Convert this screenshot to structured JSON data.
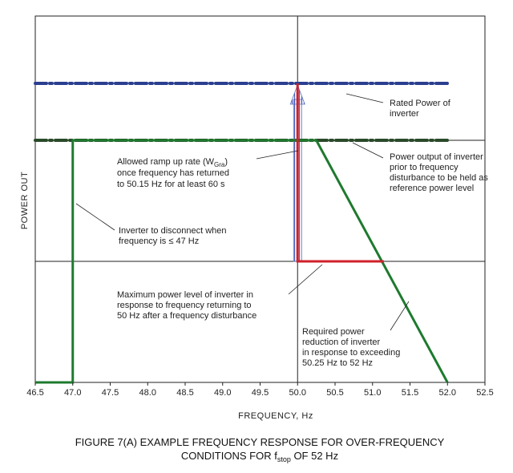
{
  "chart_data": {
    "type": "line",
    "xlabel": "FREQUENCY, Hz",
    "ylabel": "POWER OUT",
    "xlim": [
      46.5,
      52.5
    ],
    "x_ticks": [
      "46.5",
      "47.0",
      "47.5",
      "48.0",
      "48.5",
      "49.0",
      "49.5",
      "50.0",
      "50.5",
      "51.0",
      "51.5",
      "52.0",
      "52.5"
    ],
    "grid": true,
    "caption": {
      "line1": "FIGURE  7(A)   EXAMPLE FREQUENCY RESPONSE FOR OVER-FREQUENCY",
      "line2_prefix": "CONDITIONS FOR f",
      "line2_sub": "stop",
      "line2_suffix": " OF 52 Hz"
    },
    "series": [
      {
        "name": "rated-power-line",
        "color": "#2a3f8f",
        "x": [
          46.5,
          52.0
        ],
        "y": [
          2,
          2
        ]
      },
      {
        "name": "reference-power-line",
        "color": "#2a4a2a",
        "x": [
          46.5,
          52.0
        ],
        "y": [
          1,
          1
        ]
      },
      {
        "name": "green-response",
        "color": "#1e7a2e",
        "x": [
          46.5,
          47.0,
          47.0,
          50.25,
          52.0
        ],
        "y": [
          -1,
          -1,
          1,
          1,
          -1
        ]
      },
      {
        "name": "red-response",
        "color": "#d0202a",
        "x": [
          51.15,
          50.0,
          50.0
        ],
        "y": [
          0,
          0,
          2
        ]
      }
    ],
    "ramp_arrow": {
      "x": 50.0,
      "y_from": 0,
      "y_to": 2,
      "color": "#5a70c0"
    },
    "annotations": {
      "rated": [
        "Rated Power of",
        "inverter"
      ],
      "reference": [
        "Power output of inverter",
        "prior to frequency",
        "disturbance to be held as",
        "reference power level"
      ],
      "ramp": {
        "line1_prefix": "Allowed ramp up rate (W",
        "line1_sub": "Gra",
        "line1_suffix": ")",
        "rest": [
          "once frequency has returned",
          "to 50.15 Hz for at least 60 s"
        ]
      },
      "disconnect": [
        "Inverter to disconnect when",
        "frequency is ≤ 47 Hz"
      ],
      "maximum": [
        "Maximum power level of inverter in",
        "response to frequency returning to",
        "50 Hz after a frequency disturbance"
      ],
      "required": [
        "Required power",
        "reduction of inverter",
        "in response to exceeding",
        "50.25 Hz to 52 Hz"
      ]
    }
  }
}
